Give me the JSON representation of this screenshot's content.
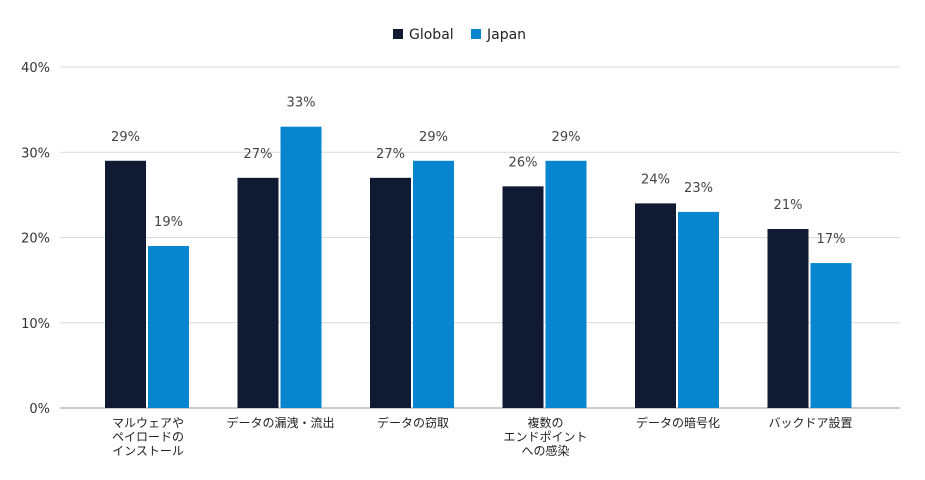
{
  "chart_data": {
    "type": "bar",
    "categories": [
      [
        "マルウェアや",
        "ペイロードの",
        "インストール"
      ],
      [
        "データの漏洩・流出"
      ],
      [
        "データの窃取"
      ],
      [
        "複数の",
        "エンドポイント",
        "への感染"
      ],
      [
        "データの暗号化"
      ],
      [
        "バックドア設置"
      ]
    ],
    "series": [
      {
        "name": "Global",
        "color": "#111a33",
        "values": [
          29,
          27,
          27,
          26,
          24,
          21
        ],
        "labels": [
          "29%",
          "27%",
          "27%",
          "26%",
          "24%",
          "21%"
        ]
      },
      {
        "name": "Japan",
        "color": "#0786cf",
        "values": [
          19,
          33,
          29,
          29,
          23,
          17
        ],
        "labels": [
          "19%",
          "33%",
          "29%",
          "29%",
          "23%",
          "17%"
        ]
      }
    ],
    "ylim": [
      0,
      40
    ],
    "yticks": [
      "0%",
      "10%",
      "20%",
      "30%",
      "40%"
    ],
    "grid": true,
    "legend_position": "top-center"
  }
}
